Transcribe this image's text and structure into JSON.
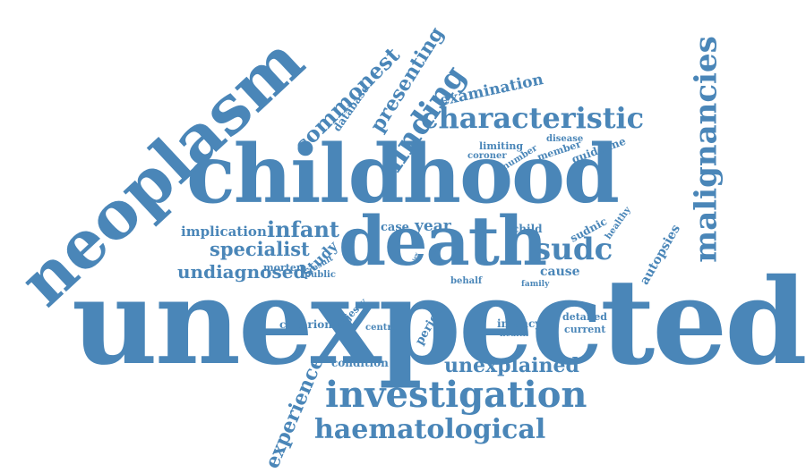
{
  "color": "#4a86b8",
  "words": {
    "unexpected": "unexpected",
    "childhood": "childhood",
    "neoplasm": "neoplasm",
    "death": "death",
    "malignancies": "malignancies",
    "characteristic": "characteristic",
    "investigation": "investigation",
    "haematological": "haematological",
    "sudc": "sudc",
    "unexplained": "unexplained",
    "commonest": "commonest",
    "presenting": "presenting",
    "finding": "finding",
    "examination": "examination",
    "experience": "experience",
    "infant": "infant",
    "year": "year",
    "case": "case",
    "specialist": "specialist",
    "undiagnosed": "undiagnosed",
    "implication": "implication",
    "study": "study",
    "mortem": "mortem",
    "public": "public",
    "result": "result",
    "child": "child",
    "sudnic": "sudnic",
    "cause": "cause",
    "healthy": "healthy",
    "autopsies": "autopsies",
    "database": "database",
    "limiting": "limiting",
    "disease": "disease",
    "coroner": "coroner",
    "number": "number",
    "member": "member",
    "guideline": "guideline",
    "behalf": "behalf",
    "family": "family",
    "detailed": "detailed",
    "current": "current",
    "infancy": "infancy",
    "health": "health",
    "period": "period",
    "centre": "centre",
    "majesty": "majesty",
    "criterion": "criterion",
    "condition": "condition",
    "tiny_a": "law",
    "tiny_b": "lifs"
  }
}
